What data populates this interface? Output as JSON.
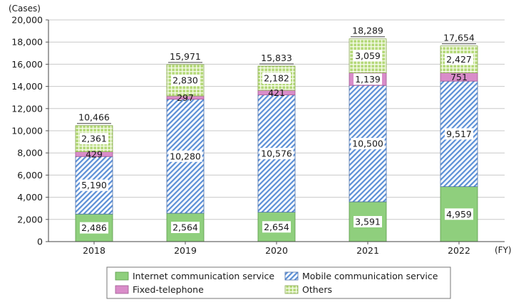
{
  "chart_data": {
    "type": "bar",
    "stacked": true,
    "ylabel": "(Cases)",
    "xlabel": "(FY)",
    "ylim": [
      0,
      20000
    ],
    "ytick_step": 2000,
    "yticks": [
      "0",
      "2,000",
      "4,000",
      "6,000",
      "8,000",
      "10,000",
      "12,000",
      "14,000",
      "16,000",
      "18,000",
      "20,000"
    ],
    "grid": true,
    "legend_position": "bottom",
    "categories": [
      "2018",
      "2019",
      "2020",
      "2021",
      "2022"
    ],
    "totals": [
      10466,
      15971,
      15833,
      18289,
      17654
    ],
    "total_labels": [
      "10,466",
      "15,971",
      "15,833",
      "18,289",
      "17,654"
    ],
    "series": [
      {
        "name": "Internet communication service",
        "color": "#8fcf7d",
        "pattern": "solid",
        "values": [
          2486,
          2564,
          2654,
          3591,
          4959
        ],
        "labels": [
          "2,486",
          "2,564",
          "2,654",
          "3,591",
          "4,959"
        ]
      },
      {
        "name": "Mobile communication service",
        "color": "#5b8fd6",
        "pattern": "diagonal",
        "values": [
          5190,
          10280,
          10576,
          10500,
          9517
        ],
        "labels": [
          "5,190",
          "10,280",
          "10,576",
          "10,500",
          "9,517"
        ]
      },
      {
        "name": "Fixed-telephone",
        "color": "#d98cc9",
        "pattern": "solid",
        "values": [
          429,
          297,
          421,
          1139,
          751
        ],
        "labels": [
          "429",
          "297",
          "421",
          "1,139",
          "751"
        ]
      },
      {
        "name": "Others",
        "color": "#b5d97a",
        "pattern": "grid",
        "values": [
          2361,
          2830,
          2182,
          3059,
          2427
        ],
        "labels": [
          "2,361",
          "2,830",
          "2,182",
          "3,059",
          "2,427"
        ]
      }
    ]
  }
}
